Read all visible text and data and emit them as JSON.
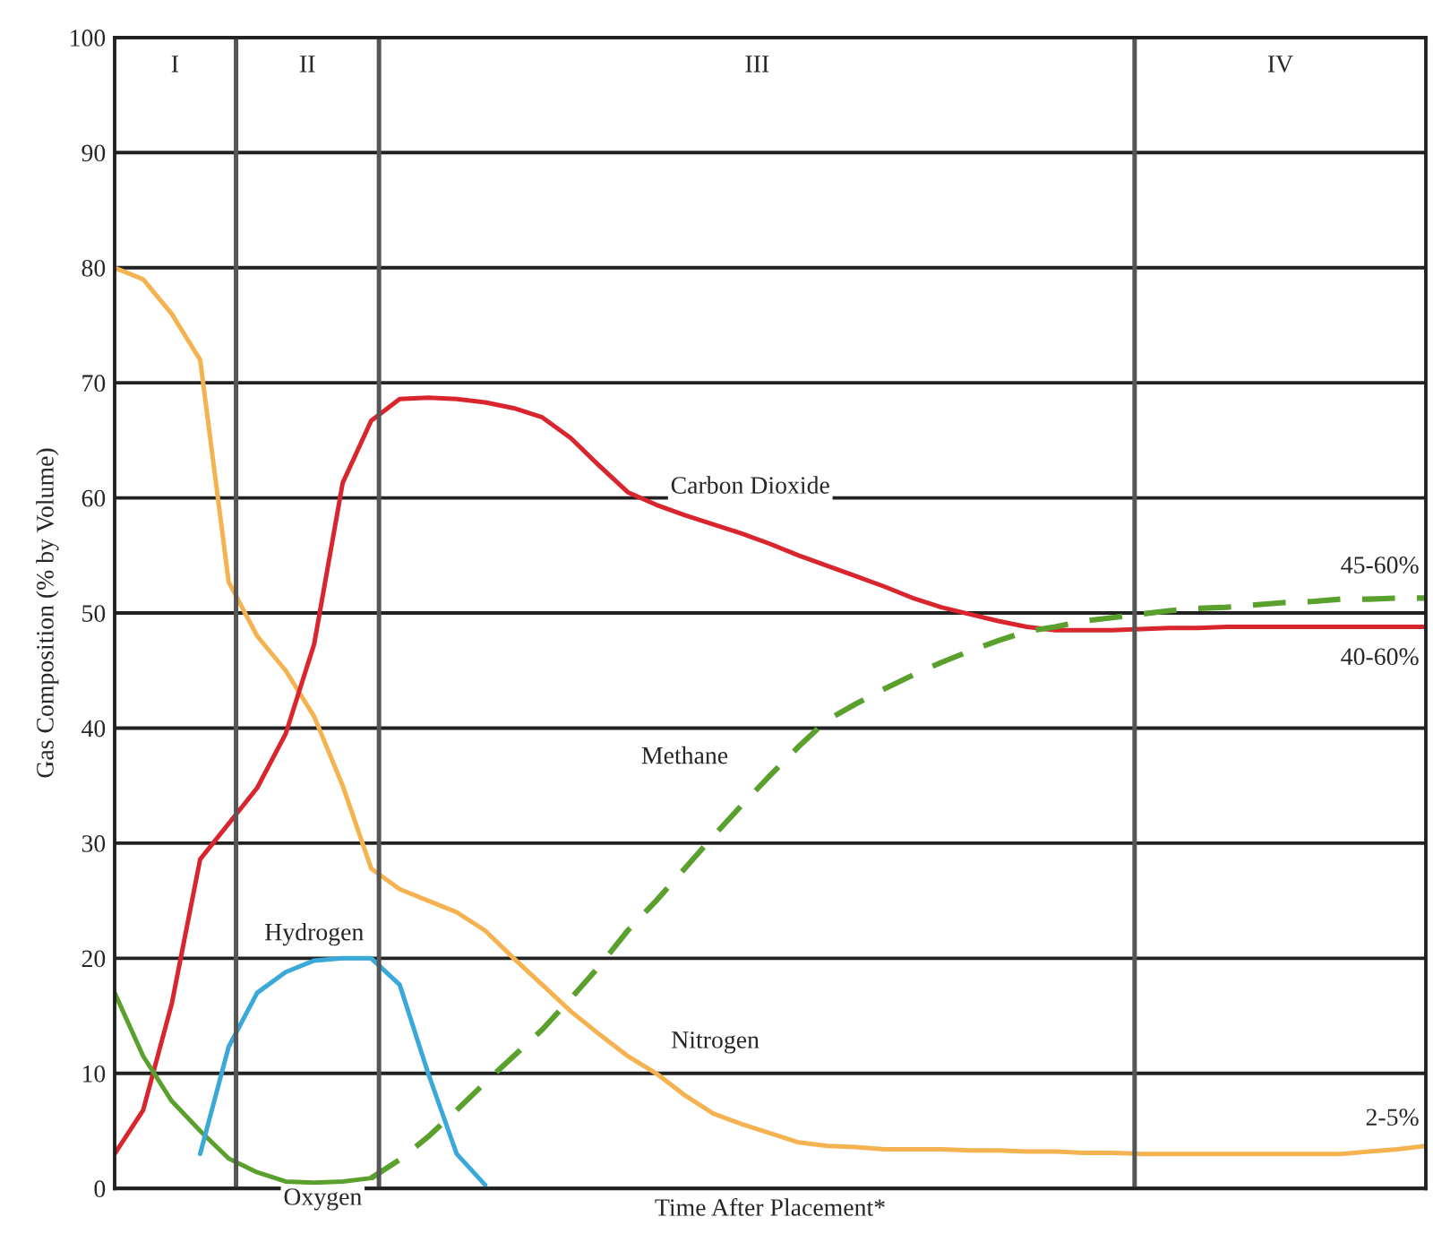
{
  "chart_data": {
    "type": "line",
    "xlabel": "Time After Placement*",
    "ylabel": "Gas Composition (% by Volume)",
    "categories": [
      null,
      null,
      null,
      null,
      null,
      null,
      null,
      null,
      null,
      null,
      null,
      null,
      null,
      null,
      null,
      null,
      null,
      null,
      null,
      null,
      null,
      null,
      null,
      null,
      null,
      null,
      null,
      null,
      null,
      null,
      null,
      null,
      null,
      null,
      null,
      null,
      null,
      null,
      null,
      null,
      null,
      null,
      null,
      null,
      null,
      null,
      null
    ],
    "ylim": [
      0,
      100
    ],
    "yticks": [
      0,
      10,
      20,
      30,
      40,
      50,
      60,
      70,
      80,
      90,
      100
    ],
    "grid": "y",
    "tick_labels": "y",
    "series": [
      {
        "name": "Nitrogen",
        "color": "#f4b350",
        "line_style": "solid",
        "values": [
          80,
          79,
          76,
          72,
          52.7,
          48,
          45,
          41,
          35,
          27.8,
          26,
          25,
          24,
          22.4,
          20,
          17.7,
          15.4,
          13.4,
          11.5,
          10,
          8.1,
          6.5,
          5.6,
          4.8,
          4.0,
          3.7,
          3.6,
          3.4,
          3.4,
          3.4,
          3.3,
          3.3,
          3.2,
          3.2,
          3.1,
          3.1,
          3.0,
          3.0,
          3.0,
          3.0,
          3.0,
          3.0,
          3.0,
          3.0,
          3.2,
          3.4,
          3.7
        ]
      },
      {
        "name": "Carbon Dioxide",
        "color": "#d9262e",
        "line_style": "solid",
        "values": [
          3,
          6.8,
          16,
          28.6,
          31.7,
          34.8,
          39.5,
          47.3,
          61.3,
          66.7,
          68.6,
          68.7,
          68.6,
          68.3,
          67.8,
          67,
          65.2,
          62.8,
          60.5,
          59.4,
          58.5,
          57.7,
          56.9,
          56,
          55,
          54.1,
          53.2,
          52.3,
          51.3,
          50.5,
          49.9,
          49.3,
          48.8,
          48.5,
          48.5,
          48.5,
          48.6,
          48.7,
          48.7,
          48.8,
          48.8,
          48.8,
          48.8,
          48.8,
          48.8,
          48.8,
          48.8
        ]
      },
      {
        "name": "Oxygen",
        "color": "#5aa02c",
        "line_style": "solid",
        "values": [
          17,
          11.5,
          7.6,
          5,
          2.6,
          1.4,
          0.6,
          0.5,
          0.6,
          0.9,
          null,
          null,
          null,
          null,
          null,
          null,
          null,
          null,
          null,
          null,
          null,
          null,
          null,
          null,
          null,
          null,
          null,
          null,
          null,
          null,
          null,
          null,
          null,
          null,
          null,
          null,
          null,
          null,
          null,
          null,
          null,
          null,
          null,
          null,
          null,
          null,
          null
        ]
      },
      {
        "name": "Methane",
        "color": "#5aa02c",
        "line_style": "dashed",
        "values": [
          null,
          null,
          null,
          null,
          null,
          null,
          null,
          null,
          null,
          0.9,
          2.5,
          4.5,
          6.8,
          9.2,
          11.5,
          13.8,
          16.5,
          19.3,
          22.4,
          25,
          27.8,
          30.6,
          33.3,
          35.9,
          38.4,
          40.7,
          42.1,
          43.4,
          44.6,
          45.7,
          46.7,
          47.6,
          48.4,
          48.8,
          49.3,
          49.6,
          49.9,
          50.2,
          50.4,
          50.5,
          50.7,
          50.9,
          51,
          51.2,
          51.2,
          51.3,
          51.3
        ]
      },
      {
        "name": "Hydrogen",
        "color": "#3aa8d8",
        "line_style": "solid",
        "values": [
          null,
          null,
          null,
          3,
          12.3,
          17,
          18.8,
          19.8,
          20,
          20,
          17.7,
          10,
          3,
          0.3,
          null,
          null,
          null,
          null,
          null,
          null,
          null,
          null,
          null,
          null,
          null,
          null,
          null,
          null,
          null,
          null,
          null,
          null,
          null,
          null,
          null,
          null,
          null,
          null,
          null,
          null,
          null,
          null,
          null,
          null,
          null,
          null,
          null
        ]
      }
    ],
    "annotations": [
      "I",
      "II",
      "III",
      "IV",
      "45-60%",
      "40-60%",
      "2-5%"
    ]
  }
}
